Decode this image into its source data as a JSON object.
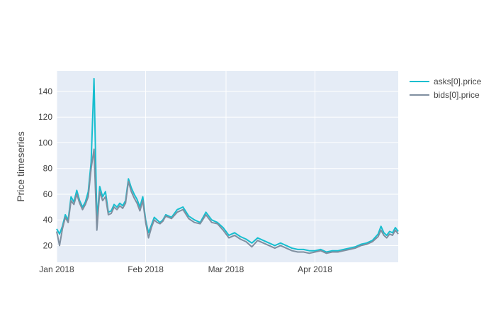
{
  "chart_data": {
    "type": "line",
    "title": "",
    "xlabel": "",
    "ylabel": "Price timeseries",
    "x_range": [
      "2018-01-01",
      "2018-04-30"
    ],
    "ylim": [
      7,
      156
    ],
    "y_ticks": [
      20,
      40,
      60,
      80,
      100,
      120,
      140
    ],
    "x_ticks": [
      {
        "date": "2018-01-01",
        "label": "Jan 2018"
      },
      {
        "date": "2018-02-01",
        "label": "Feb 2018"
      },
      {
        "date": "2018-03-01",
        "label": "Mar 2018"
      },
      {
        "date": "2018-04-01",
        "label": "Apr 2018"
      }
    ],
    "grid": true,
    "legend_position": "top-right",
    "background_color": "#e5ecf6",
    "series": [
      {
        "name": "asks[0].price",
        "color": "#17becf",
        "x": [
          "2018-01-01",
          "2018-01-02",
          "2018-01-03",
          "2018-01-04",
          "2018-01-05",
          "2018-01-06",
          "2018-01-07",
          "2018-01-08",
          "2018-01-09",
          "2018-01-10",
          "2018-01-11",
          "2018-01-12",
          "2018-01-13",
          "2018-01-14",
          "2018-01-15",
          "2018-01-16",
          "2018-01-17",
          "2018-01-18",
          "2018-01-19",
          "2018-01-20",
          "2018-01-21",
          "2018-01-22",
          "2018-01-23",
          "2018-01-24",
          "2018-01-25",
          "2018-01-26",
          "2018-01-27",
          "2018-01-28",
          "2018-01-29",
          "2018-01-30",
          "2018-01-31",
          "2018-02-01",
          "2018-02-02",
          "2018-02-03",
          "2018-02-04",
          "2018-02-05",
          "2018-02-06",
          "2018-02-07",
          "2018-02-08",
          "2018-02-10",
          "2018-02-12",
          "2018-02-14",
          "2018-02-16",
          "2018-02-18",
          "2018-02-20",
          "2018-02-22",
          "2018-02-24",
          "2018-02-26",
          "2018-02-28",
          "2018-03-02",
          "2018-03-04",
          "2018-03-06",
          "2018-03-08",
          "2018-03-10",
          "2018-03-12",
          "2018-03-14",
          "2018-03-16",
          "2018-03-18",
          "2018-03-20",
          "2018-03-22",
          "2018-03-24",
          "2018-03-26",
          "2018-03-28",
          "2018-03-30",
          "2018-04-01",
          "2018-04-03",
          "2018-04-05",
          "2018-04-07",
          "2018-04-09",
          "2018-04-11",
          "2018-04-13",
          "2018-04-15",
          "2018-04-17",
          "2018-04-19",
          "2018-04-21",
          "2018-04-23",
          "2018-04-24",
          "2018-04-25",
          "2018-04-26",
          "2018-04-27",
          "2018-04-28",
          "2018-04-29",
          "2018-04-30"
        ],
        "y": [
          33,
          29,
          35,
          44,
          40,
          58,
          54,
          63,
          55,
          50,
          54,
          62,
          85,
          150,
          40,
          66,
          58,
          62,
          46,
          47,
          52,
          50,
          53,
          51,
          55,
          72,
          65,
          60,
          56,
          50,
          58,
          40,
          30,
          36,
          42,
          40,
          38,
          40,
          44,
          42,
          48,
          50,
          43,
          40,
          38,
          46,
          40,
          38,
          34,
          28,
          30,
          27,
          25,
          22,
          26,
          24,
          22,
          20,
          22,
          20,
          18,
          17,
          17,
          16,
          16,
          17,
          15,
          16,
          16,
          17,
          18,
          19,
          21,
          22,
          24,
          29,
          35,
          30,
          28,
          31,
          30,
          34,
          31
        ]
      },
      {
        "name": "bids[0].price",
        "color": "#7f8fa0",
        "x": [
          "2018-01-01",
          "2018-01-02",
          "2018-01-03",
          "2018-01-04",
          "2018-01-05",
          "2018-01-06",
          "2018-01-07",
          "2018-01-08",
          "2018-01-09",
          "2018-01-10",
          "2018-01-11",
          "2018-01-12",
          "2018-01-13",
          "2018-01-14",
          "2018-01-15",
          "2018-01-16",
          "2018-01-17",
          "2018-01-18",
          "2018-01-19",
          "2018-01-20",
          "2018-01-21",
          "2018-01-22",
          "2018-01-23",
          "2018-01-24",
          "2018-01-25",
          "2018-01-26",
          "2018-01-27",
          "2018-01-28",
          "2018-01-29",
          "2018-01-30",
          "2018-01-31",
          "2018-02-01",
          "2018-02-02",
          "2018-02-03",
          "2018-02-04",
          "2018-02-05",
          "2018-02-06",
          "2018-02-07",
          "2018-02-08",
          "2018-02-10",
          "2018-02-12",
          "2018-02-14",
          "2018-02-16",
          "2018-02-18",
          "2018-02-20",
          "2018-02-22",
          "2018-02-24",
          "2018-02-26",
          "2018-02-28",
          "2018-03-02",
          "2018-03-04",
          "2018-03-06",
          "2018-03-08",
          "2018-03-10",
          "2018-03-12",
          "2018-03-14",
          "2018-03-16",
          "2018-03-18",
          "2018-03-20",
          "2018-03-22",
          "2018-03-24",
          "2018-03-26",
          "2018-03-28",
          "2018-03-30",
          "2018-04-01",
          "2018-04-03",
          "2018-04-05",
          "2018-04-07",
          "2018-04-09",
          "2018-04-11",
          "2018-04-13",
          "2018-04-15",
          "2018-04-17",
          "2018-04-19",
          "2018-04-21",
          "2018-04-23",
          "2018-04-24",
          "2018-04-25",
          "2018-04-26",
          "2018-04-27",
          "2018-04-28",
          "2018-04-29",
          "2018-04-30"
        ],
        "y": [
          31,
          20,
          33,
          42,
          38,
          55,
          52,
          60,
          53,
          48,
          52,
          58,
          80,
          95,
          32,
          62,
          55,
          58,
          44,
          45,
          50,
          48,
          51,
          49,
          53,
          70,
          62,
          57,
          53,
          47,
          55,
          38,
          26,
          34,
          40,
          38,
          37,
          39,
          43,
          41,
          46,
          48,
          41,
          38,
          37,
          44,
          38,
          37,
          32,
          26,
          28,
          25,
          23,
          19,
          24,
          22,
          20,
          18,
          20,
          18,
          16,
          15,
          15,
          14,
          15,
          16,
          14,
          15,
          15,
          16,
          17,
          18,
          20,
          21,
          23,
          27,
          32,
          28,
          26,
          29,
          28,
          32,
          29
        ]
      }
    ]
  }
}
